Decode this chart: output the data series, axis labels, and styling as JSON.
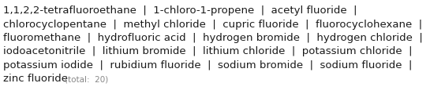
{
  "lines": [
    "1,1,2,2-tetrafluoroethane | 1-chloro-1-propene | acetyl fluoride |",
    "chlorocyclopentane | methyl chloride | cupric fluoride | fluorocyclohexane |",
    "fluoromethane | hydrofluoric acid | hydrogen bromide | hydrogen chloride |",
    "iodoacetonitrile | lithium bromide | lithium chloride | potassium chloride |",
    "potassium iodide | rubidium fluoride | sodium bromide | sodium fluoride |"
  ],
  "last_item": "zinc fluoride",
  "total_label": "(total:  20)",
  "separator": " | ",
  "background_color": "#ffffff",
  "text_color": "#1a1a1a",
  "total_color": "#888888",
  "font_size": 9.5,
  "total_font_size": 7.5,
  "fig_width": 5.45,
  "fig_height": 1.2,
  "dpi": 100
}
